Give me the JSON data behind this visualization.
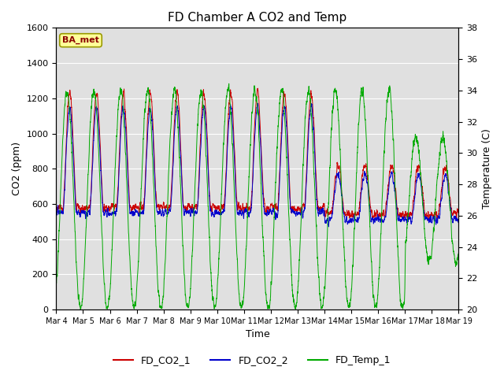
{
  "title": "FD Chamber A CO2 and Temp",
  "xlabel": "Time",
  "ylabel_left": "CO2 (ppm)",
  "ylabel_right": "Temperature (C)",
  "ylim_left": [
    0,
    1600
  ],
  "ylim_right": [
    20,
    38
  ],
  "yticks_left": [
    0,
    200,
    400,
    600,
    800,
    1000,
    1200,
    1400,
    1600
  ],
  "yticks_right": [
    20,
    22,
    24,
    26,
    28,
    30,
    32,
    34,
    36,
    38
  ],
  "xtick_labels": [
    "Mar 4",
    "Mar 5",
    "Mar 6",
    "Mar 7",
    "Mar 8",
    "Mar 9",
    "Mar 10",
    "Mar 11",
    "Mar 12",
    "Mar 13",
    "Mar 14",
    "Mar 15",
    "Mar 16",
    "Mar 17",
    "Mar 18",
    "Mar 19"
  ],
  "color_co2_1": "#cc0000",
  "color_co2_2": "#0000cc",
  "color_temp": "#00aa00",
  "annotation_text": "BA_met",
  "annotation_box_color": "#ffff99",
  "legend_entries": [
    "FD_CO2_1",
    "FD_CO2_2",
    "FD_Temp_1"
  ]
}
